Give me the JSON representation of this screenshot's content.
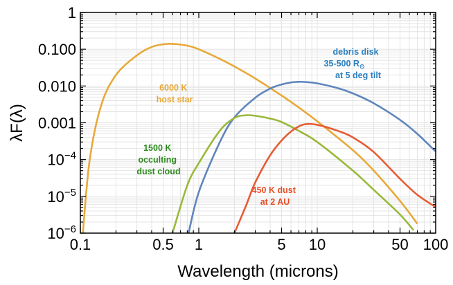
{
  "chart_data": {
    "type": "line",
    "xlabel": "Wavelength (microns)",
    "ylabel": "λF(λ)",
    "x_scale": "log",
    "y_scale": "log",
    "xlim": [
      0.1,
      100
    ],
    "ylim": [
      1e-06,
      1
    ],
    "grid": true,
    "x_ticks": [
      {
        "value": 0.1,
        "label": "0.1"
      },
      {
        "value": 0.5,
        "label": "0.5"
      },
      {
        "value": 1,
        "label": "1"
      },
      {
        "value": 5,
        "label": "5"
      },
      {
        "value": 10,
        "label": "10"
      },
      {
        "value": 50,
        "label": "50"
      },
      {
        "value": 100,
        "label": "100"
      }
    ],
    "y_ticks": [
      {
        "value": 1e-06,
        "base": "10",
        "exp": "−6"
      },
      {
        "value": 1e-05,
        "base": "10",
        "exp": "−5"
      },
      {
        "value": 0.0001,
        "base": "10",
        "exp": "−4"
      },
      {
        "value": 0.001,
        "label": "0.001"
      },
      {
        "value": 0.01,
        "label": "0.010"
      },
      {
        "value": 0.1,
        "label": "0.100"
      },
      {
        "value": 1,
        "label": "1"
      }
    ],
    "series": [
      {
        "color": "#e8a93a",
        "peak": {
          "x": 0.6,
          "y": 0.14
        },
        "points": [
          [
            0.105,
            1e-06
          ],
          [
            0.12,
            0.0001
          ],
          [
            0.15,
            0.003
          ],
          [
            0.2,
            0.02
          ],
          [
            0.3,
            0.068
          ],
          [
            0.4,
            0.115
          ],
          [
            0.5,
            0.136
          ],
          [
            0.6,
            0.14
          ],
          [
            0.8,
            0.125
          ],
          [
            1,
            0.1
          ],
          [
            1.5,
            0.055
          ],
          [
            2,
            0.034
          ],
          [
            3,
            0.016
          ],
          [
            5,
            0.0055
          ],
          [
            7,
            0.0026
          ],
          [
            10,
            0.0011
          ],
          [
            20,
            0.00018
          ],
          [
            30,
            5e-05
          ],
          [
            50,
            7.5e-06
          ],
          [
            70,
            1.8e-06
          ]
        ]
      },
      {
        "color": "#5f86bd",
        "peak": {
          "x": 7,
          "y": 0.013
        },
        "points": [
          [
            0.82,
            1e-06
          ],
          [
            1,
            1.3e-05
          ],
          [
            1.5,
            0.00029
          ],
          [
            2,
            0.0014
          ],
          [
            3,
            0.0048
          ],
          [
            4,
            0.0085
          ],
          [
            5,
            0.011
          ],
          [
            6,
            0.0125
          ],
          [
            7,
            0.013
          ],
          [
            8,
            0.0128
          ],
          [
            10,
            0.0118
          ],
          [
            15,
            0.0087
          ],
          [
            20,
            0.0063
          ],
          [
            30,
            0.0034
          ],
          [
            50,
            0.0012
          ],
          [
            70,
            0.0005
          ],
          [
            100,
            0.000165
          ]
        ]
      },
      {
        "color": "#9ab83a",
        "peak": {
          "x": 2.5,
          "y": 0.0016
        },
        "points": [
          [
            0.6,
            1e-06
          ],
          [
            0.8,
            2e-05
          ],
          [
            1,
            8e-05
          ],
          [
            1.5,
            0.0006
          ],
          [
            2,
            0.00135
          ],
          [
            2.5,
            0.0016
          ],
          [
            3,
            0.00155
          ],
          [
            4,
            0.0013
          ],
          [
            5,
            0.00105
          ],
          [
            7,
            0.0006
          ],
          [
            10,
            0.0003
          ],
          [
            20,
            5e-05
          ],
          [
            30,
            1.5e-05
          ],
          [
            50,
            3.2e-06
          ],
          [
            65,
            1.2e-06
          ]
        ]
      },
      {
        "color": "#e65c34",
        "peak": {
          "x": 8,
          "y": 0.00092
        },
        "points": [
          [
            2,
            1e-06
          ],
          [
            2.5,
            5.5e-06
          ],
          [
            3,
            2.4e-05
          ],
          [
            4,
            0.00013
          ],
          [
            5,
            0.00033
          ],
          [
            6,
            0.00058
          ],
          [
            7,
            0.0008
          ],
          [
            8,
            0.00092
          ],
          [
            10,
            0.00088
          ],
          [
            15,
            0.0006
          ],
          [
            20,
            0.0004
          ],
          [
            30,
            0.00016
          ],
          [
            50,
            3e-05
          ],
          [
            70,
            1.1e-05
          ],
          [
            100,
            5.1e-06
          ]
        ]
      }
    ],
    "annotations": [
      {
        "lines": [
          "6000 K",
          "host star"
        ],
        "color": "#e8a93a"
      },
      {
        "lines": [
          "debris disk",
          "35-500 R",
          "at 5 deg tilt"
        ],
        "sun_symbol": "⊙",
        "color": "#2a7fbf"
      },
      {
        "lines": [
          "1500 K",
          "occulting",
          "dust cloud"
        ],
        "color": "#2f8a1e"
      },
      {
        "lines": [
          "450 K dust",
          "at 2 AU"
        ],
        "color": "#e84e27"
      }
    ]
  }
}
